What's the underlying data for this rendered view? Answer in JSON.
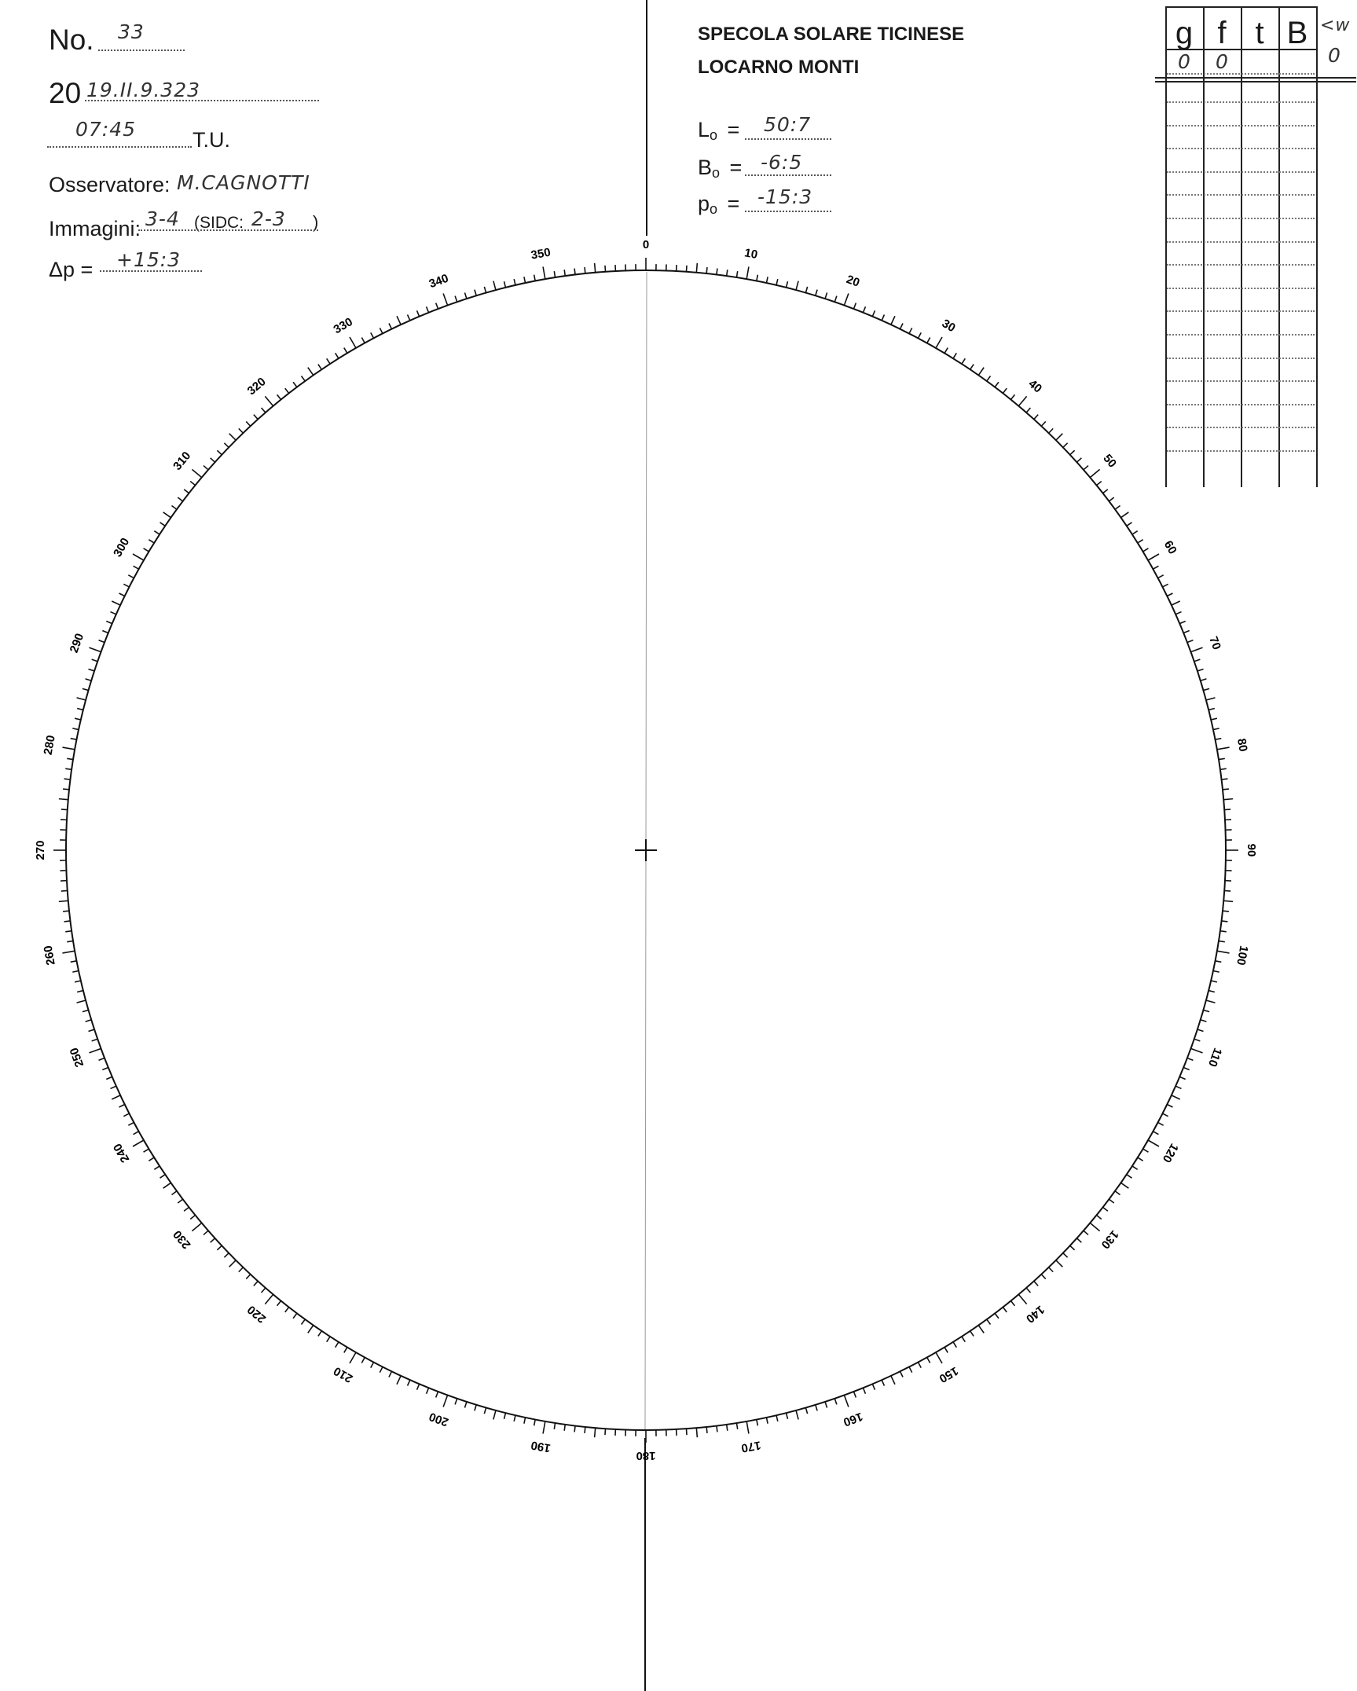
{
  "header": {
    "no_label": "No.",
    "no_value": "33",
    "date_prefix": "20",
    "date_value": "19.II.9.323",
    "time_value": "07:45",
    "time_unit": "T.U.",
    "observer_label": "Osservatore:",
    "observer_value": "M.CAGNOTTI",
    "images_label": "Immagini:",
    "images_value": "3-4",
    "sidc_label": "(SIDC:",
    "sidc_value": "2-3",
    "sidc_close": ")",
    "delta_p_label": "Δp =",
    "delta_p_value": "+15:3"
  },
  "institution": {
    "line1": "SPECOLA SOLARE TICINESE",
    "line2": "LOCARNO MONTI"
  },
  "parameters": [
    {
      "label": "L",
      "sub": "o",
      "eq": "=",
      "value": "50:7"
    },
    {
      "label": "B",
      "sub": "o",
      "eq": "=",
      "value": "-6:5"
    },
    {
      "label": "p",
      "sub": "o",
      "eq": "=",
      "value": "-15:3"
    }
  ],
  "count_table": {
    "headers": [
      "g",
      "f",
      "t",
      "B"
    ],
    "first_row": [
      "0",
      "0",
      "",
      ""
    ],
    "side_note": "<w",
    "side_value": "0"
  },
  "dial": {
    "labels": [
      "0",
      "10",
      "20",
      "30",
      "40",
      "50",
      "60",
      "70",
      "80",
      "90",
      "100",
      "110",
      "120",
      "130",
      "140",
      "150",
      "160",
      "170",
      "180",
      "190",
      "200",
      "210",
      "220",
      "230",
      "240",
      "250",
      "260",
      "270",
      "280",
      "290",
      "300",
      "310",
      "320",
      "330",
      "340",
      "350"
    ]
  }
}
